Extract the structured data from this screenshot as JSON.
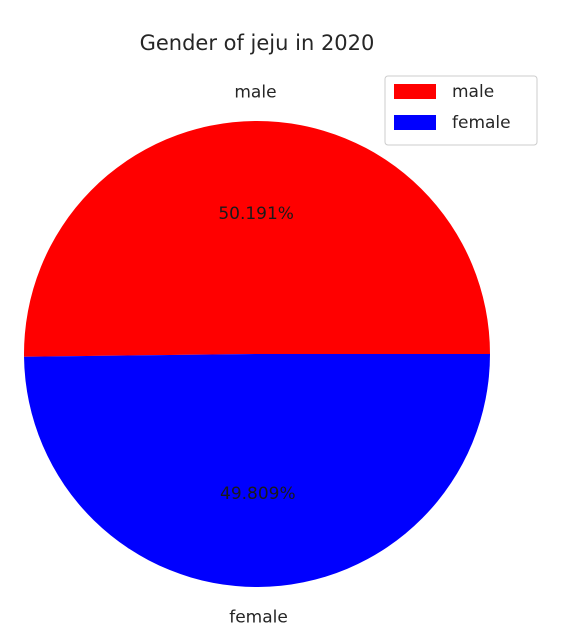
{
  "chart_data": {
    "type": "pie",
    "title": "Gender of jeju in 2020",
    "categories": [
      "male",
      "female"
    ],
    "values": [
      50.191,
      49.809
    ],
    "percent_labels": [
      "50.191%",
      "49.809%"
    ],
    "colors": [
      "#ff0000",
      "#0000ff"
    ],
    "start_angle_deg": 0,
    "direction": "counterclockwise",
    "legend": {
      "position": "top-right",
      "entries": [
        "male",
        "female"
      ]
    }
  }
}
